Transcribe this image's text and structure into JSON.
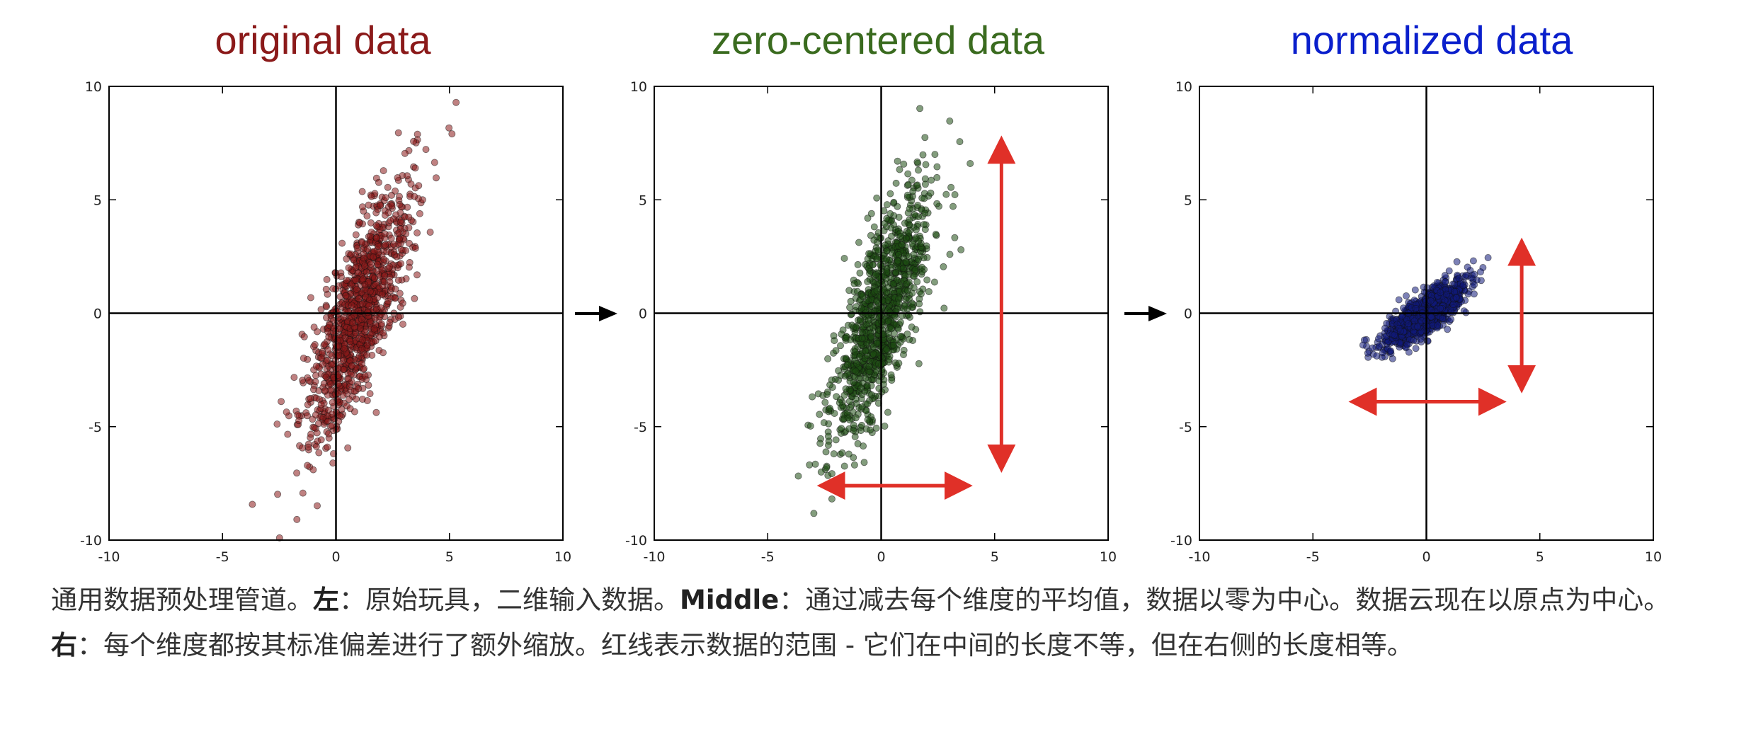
{
  "chart_data": [
    {
      "type": "scatter",
      "title": "original data",
      "title_color": "#8b1a1a",
      "point_color": "#8b1a1a",
      "xlim": [
        -10,
        10
      ],
      "ylim": [
        -10,
        10
      ],
      "xticks": [
        "-10",
        "-5",
        "0",
        "5",
        "10"
      ],
      "yticks": [
        "-10",
        "-5",
        "0",
        "5",
        "10"
      ],
      "grid": false,
      "axes_through_origin": true,
      "distribution": {
        "center": [
          1,
          0
        ],
        "std_major": 3.0,
        "std_minor": 0.7,
        "angle_deg": 72
      },
      "range_arrows": []
    },
    {
      "type": "scatter",
      "title": "zero-centered data",
      "title_color": "#3a6b1f",
      "point_color": "#1d4d12",
      "xlim": [
        -10,
        10
      ],
      "ylim": [
        -10,
        10
      ],
      "xticks": [
        "-10",
        "-5",
        "0",
        "5",
        "10"
      ],
      "yticks": [
        "-10",
        "-5",
        "0",
        "5",
        "10"
      ],
      "grid": false,
      "axes_through_origin": true,
      "distribution": {
        "center": [
          0,
          0
        ],
        "std_major": 3.0,
        "std_minor": 0.7,
        "angle_deg": 72
      },
      "range_arrows": [
        {
          "from": [
            5.3,
            7.6
          ],
          "to": [
            5.3,
            -6.8
          ]
        },
        {
          "from": [
            -2.6,
            -7.6
          ],
          "to": [
            3.8,
            -7.6
          ]
        }
      ]
    },
    {
      "type": "scatter",
      "title": "normalized data",
      "title_color": "#0a1fcc",
      "point_color": "#101a7a",
      "xlim": [
        -10,
        10
      ],
      "ylim": [
        -10,
        10
      ],
      "xticks": [
        "-10",
        "-5",
        "0",
        "5",
        "10"
      ],
      "yticks": [
        "-10",
        "-5",
        "0",
        "5",
        "10"
      ],
      "grid": false,
      "axes_through_origin": true,
      "distribution": {
        "center": [
          0,
          0
        ],
        "std_major": 1.1,
        "std_minor": 0.35,
        "angle_deg": 38
      },
      "range_arrows": [
        {
          "from": [
            4.2,
            3.1
          ],
          "to": [
            4.2,
            -3.3
          ]
        },
        {
          "from": [
            -3.2,
            -3.9
          ],
          "to": [
            3.3,
            -3.9
          ]
        }
      ]
    }
  ],
  "colors": {
    "range_arrow": "#e03028",
    "transition_arrow": "#000000",
    "axis": "#000000"
  },
  "caption": {
    "p1": "通用数据预处理管道。",
    "b1": "左",
    "p2": "：原始玩具，二维输入数据。",
    "b2": "Middle",
    "p3": "：通过减去每个维度的平均值，数据以零为中心。数据云现在以原点为中心。",
    "b3": "右",
    "p4": "：每个维度都按其标准偏差进行了额外缩放。红线表示数据的范围 - 它们在中间的长度不等，但在右侧的长度相等。"
  }
}
